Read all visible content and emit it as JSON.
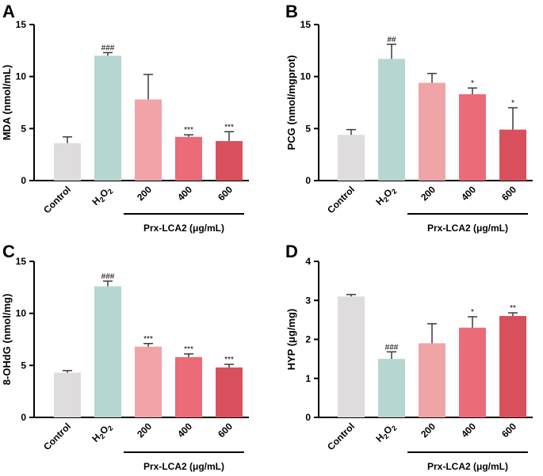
{
  "chart_data": [
    {
      "panel": "A",
      "type": "bar",
      "ylabel": "MDA (nmol/mL)",
      "ylim": [
        0,
        15
      ],
      "yticks": [
        0,
        5,
        10,
        15
      ],
      "categories": [
        "Control",
        "H2O2",
        "200",
        "400",
        "600"
      ],
      "values": [
        3.6,
        12.0,
        7.8,
        4.2,
        3.8
      ],
      "errors": [
        0.6,
        0.3,
        2.4,
        0.2,
        0.9
      ],
      "significance": [
        "",
        "###",
        "",
        "***",
        "***"
      ],
      "group_label": "Prx-LCA2 (μg/mL)",
      "colors": [
        "#dedcdd",
        "#b6d6d1",
        "#f0a4a8",
        "#ec6b78",
        "#d9505d"
      ]
    },
    {
      "panel": "B",
      "type": "bar",
      "ylabel": "PCG (nmol/mgprot)",
      "ylim": [
        0,
        15
      ],
      "yticks": [
        0,
        5,
        10,
        15
      ],
      "categories": [
        "Control",
        "H2O2",
        "200",
        "400",
        "600"
      ],
      "values": [
        4.4,
        11.7,
        9.4,
        8.3,
        4.9
      ],
      "errors": [
        0.5,
        1.4,
        0.9,
        0.6,
        2.1
      ],
      "significance": [
        "",
        "##",
        "",
        "*",
        "*"
      ],
      "group_label": "Prx-LCA2 (μg/mL)",
      "colors": [
        "#dedcdd",
        "#b6d6d1",
        "#f0a4a8",
        "#ec6b78",
        "#d9505d"
      ]
    },
    {
      "panel": "C",
      "type": "bar",
      "ylabel": "8-OHdG (nmol/mg)",
      "ylim": [
        0,
        15
      ],
      "yticks": [
        0,
        5,
        10,
        15
      ],
      "categories": [
        "Control",
        "H2O2",
        "200",
        "400",
        "600"
      ],
      "values": [
        4.3,
        12.6,
        6.8,
        5.8,
        4.8
      ],
      "errors": [
        0.2,
        0.5,
        0.3,
        0.3,
        0.3
      ],
      "significance": [
        "",
        "###",
        "***",
        "***",
        "***"
      ],
      "group_label": "Prx-LCA2 (μg/mL)",
      "colors": [
        "#dedcdd",
        "#b6d6d1",
        "#f0a4a8",
        "#ec6b78",
        "#d9505d"
      ]
    },
    {
      "panel": "D",
      "type": "bar",
      "ylabel": "HYP (μg/mg)",
      "ylim": [
        0,
        4
      ],
      "yticks": [
        0,
        1,
        2,
        3,
        4
      ],
      "categories": [
        "Control",
        "H2O2",
        "200",
        "400",
        "600"
      ],
      "values": [
        3.1,
        1.5,
        1.9,
        2.3,
        2.6
      ],
      "errors": [
        0.05,
        0.18,
        0.5,
        0.28,
        0.08
      ],
      "significance": [
        "",
        "###",
        "",
        "*",
        "**"
      ],
      "group_label": "Prx-LCA2 (μg/mL)",
      "colors": [
        "#dedcdd",
        "#b6d6d1",
        "#f0a4a8",
        "#ec6b78",
        "#d9505d"
      ]
    }
  ]
}
